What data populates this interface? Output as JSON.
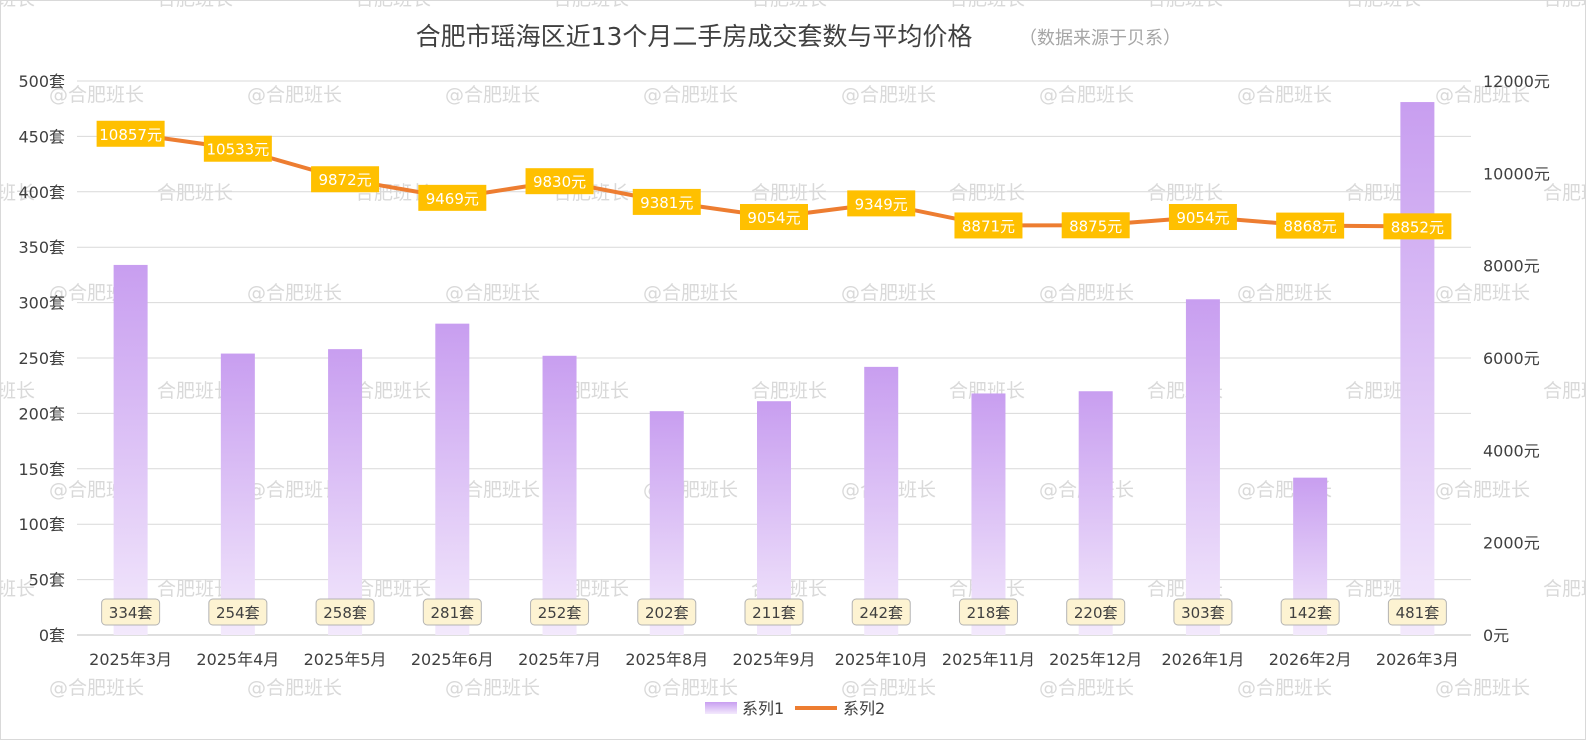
{
  "watermark": "@合肥班长",
  "watermark_alt": "合肥班长",
  "chart_data": {
    "type": "bar",
    "title": "合肥市瑶海区近13个月二手房成交套数与平均价格",
    "subtitle": "（数据来源于贝系）",
    "categories": [
      "2025年3月",
      "2025年4月",
      "2025年5月",
      "2025年6月",
      "2025年7月",
      "2025年8月",
      "2025年9月",
      "2025年10月",
      "2025年11月",
      "2025年12月",
      "2026年1月",
      "2026年2月",
      "2026年3月"
    ],
    "series": [
      {
        "name": "系列1",
        "type": "bar",
        "axis": "left",
        "unit": "套",
        "values": [
          334,
          254,
          258,
          281,
          252,
          202,
          211,
          242,
          218,
          220,
          303,
          142,
          481
        ],
        "color": "#c89ef0"
      },
      {
        "name": "系列2",
        "type": "line",
        "axis": "right",
        "unit": "元",
        "values": [
          10857,
          10533,
          9872,
          9469,
          9830,
          9381,
          9054,
          9349,
          8871,
          8875,
          9054,
          8868,
          8852
        ],
        "color": "#ed7d31",
        "label_bg": "#ffc000"
      }
    ],
    "y_left": {
      "min": 0,
      "max": 500,
      "step": 50,
      "unit": "套",
      "ticks": [
        "0套",
        "50套",
        "100套",
        "150套",
        "200套",
        "250套",
        "300套",
        "350套",
        "400套",
        "450套",
        "500套"
      ]
    },
    "y_right": {
      "min": 0,
      "max": 12000,
      "step": 2000,
      "unit": "元",
      "ticks": [
        "0元",
        "2000元",
        "4000元",
        "6000元",
        "8000元",
        "10000元",
        "12000元"
      ]
    },
    "grid": true,
    "legend_position": "bottom"
  }
}
